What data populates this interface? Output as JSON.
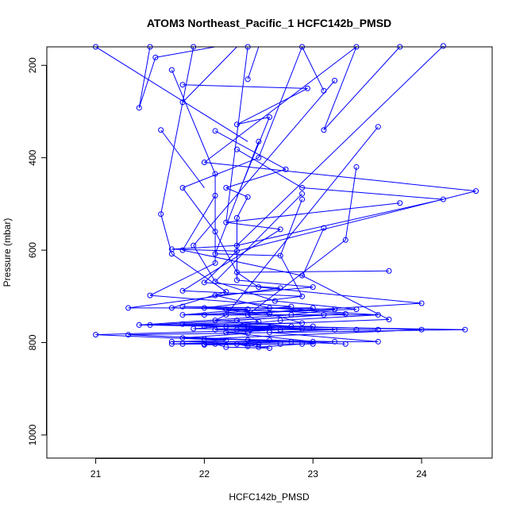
{
  "chart_data": {
    "type": "line",
    "title": "ATOM3 Northeast_Pacific_1 HCFC142b_PMSD",
    "xlabel": "HCFC142b_PMSD",
    "ylabel": "Pressure (mbar)",
    "xlim": [
      20.55,
      24.65
    ],
    "ylim": [
      1050,
      160
    ],
    "y_inverted": true,
    "x_ticks": [
      21,
      22,
      23,
      24
    ],
    "y_ticks": [
      200,
      400,
      600,
      800,
      1000
    ],
    "grid": false,
    "legend": "none",
    "marker": "open-circle",
    "color": "#0000ff",
    "points": [
      {
        "x": 21.0,
        "y": 160
      },
      {
        "x": 21.5,
        "y": 160
      },
      {
        "x": 21.9,
        "y": 160
      },
      {
        "x": 22.4,
        "y": 160
      },
      {
        "x": 22.9,
        "y": 160
      },
      {
        "x": 23.4,
        "y": 160
      },
      {
        "x": 23.8,
        "y": 160
      },
      {
        "x": 24.2,
        "y": 158
      },
      {
        "x": 21.55,
        "y": 183
      },
      {
        "x": 21.7,
        "y": 210
      },
      {
        "x": 22.4,
        "y": 230
      },
      {
        "x": 23.2,
        "y": 233
      },
      {
        "x": 21.8,
        "y": 242
      },
      {
        "x": 22.95,
        "y": 250
      },
      {
        "x": 23.1,
        "y": 255
      },
      {
        "x": 21.8,
        "y": 280
      },
      {
        "x": 21.4,
        "y": 292
      },
      {
        "x": 22.6,
        "y": 312
      },
      {
        "x": 22.3,
        "y": 328
      },
      {
        "x": 23.6,
        "y": 333
      },
      {
        "x": 21.6,
        "y": 340
      },
      {
        "x": 22.1,
        "y": 342
      },
      {
        "x": 23.1,
        "y": 340
      },
      {
        "x": 22.5,
        "y": 365
      },
      {
        "x": 22.3,
        "y": 382
      },
      {
        "x": 22.5,
        "y": 400
      },
      {
        "x": 22.0,
        "y": 410
      },
      {
        "x": 23.4,
        "y": 420
      },
      {
        "x": 22.75,
        "y": 425
      },
      {
        "x": 22.1,
        "y": 435
      },
      {
        "x": 22.2,
        "y": 465
      },
      {
        "x": 21.8,
        "y": 465
      },
      {
        "x": 22.9,
        "y": 465
      },
      {
        "x": 24.5,
        "y": 472
      },
      {
        "x": 22.9,
        "y": 478
      },
      {
        "x": 22.4,
        "y": 485
      },
      {
        "x": 22.1,
        "y": 482
      },
      {
        "x": 22.9,
        "y": 490
      },
      {
        "x": 24.2,
        "y": 490
      },
      {
        "x": 23.8,
        "y": 498
      },
      {
        "x": 21.6,
        "y": 522
      },
      {
        "x": 22.3,
        "y": 530
      },
      {
        "x": 22.2,
        "y": 540
      },
      {
        "x": 22.7,
        "y": 555
      },
      {
        "x": 23.1,
        "y": 552
      },
      {
        "x": 22.1,
        "y": 560
      },
      {
        "x": 23.3,
        "y": 578
      },
      {
        "x": 21.9,
        "y": 590
      },
      {
        "x": 22.3,
        "y": 590
      },
      {
        "x": 21.7,
        "y": 598
      },
      {
        "x": 21.8,
        "y": 600
      },
      {
        "x": 22.3,
        "y": 602
      },
      {
        "x": 21.7,
        "y": 608
      },
      {
        "x": 22.1,
        "y": 608
      },
      {
        "x": 22.7,
        "y": 612
      },
      {
        "x": 22.1,
        "y": 628
      },
      {
        "x": 23.7,
        "y": 645
      },
      {
        "x": 22.3,
        "y": 648
      },
      {
        "x": 22.9,
        "y": 655
      },
      {
        "x": 22.0,
        "y": 670
      },
      {
        "x": 22.3,
        "y": 665
      },
      {
        "x": 22.1,
        "y": 668
      },
      {
        "x": 22.5,
        "y": 680
      },
      {
        "x": 22.7,
        "y": 682
      },
      {
        "x": 23.0,
        "y": 680
      },
      {
        "x": 21.8,
        "y": 688
      },
      {
        "x": 22.2,
        "y": 690
      },
      {
        "x": 22.1,
        "y": 698
      },
      {
        "x": 21.5,
        "y": 698
      },
      {
        "x": 22.9,
        "y": 700
      },
      {
        "x": 22.65,
        "y": 710
      },
      {
        "x": 24.0,
        "y": 715
      },
      {
        "x": 21.3,
        "y": 725
      },
      {
        "x": 21.7,
        "y": 725
      },
      {
        "x": 21.8,
        "y": 722
      },
      {
        "x": 22.0,
        "y": 725
      },
      {
        "x": 22.2,
        "y": 728
      },
      {
        "x": 22.4,
        "y": 728
      },
      {
        "x": 22.6,
        "y": 725
      },
      {
        "x": 22.8,
        "y": 722
      },
      {
        "x": 23.0,
        "y": 725
      },
      {
        "x": 23.2,
        "y": 728
      },
      {
        "x": 23.4,
        "y": 728
      },
      {
        "x": 21.8,
        "y": 740
      },
      {
        "x": 22.0,
        "y": 740
      },
      {
        "x": 22.2,
        "y": 740
      },
      {
        "x": 22.4,
        "y": 740
      },
      {
        "x": 22.6,
        "y": 738
      },
      {
        "x": 22.8,
        "y": 740
      },
      {
        "x": 23.1,
        "y": 740
      },
      {
        "x": 23.3,
        "y": 738
      },
      {
        "x": 23.6,
        "y": 740
      },
      {
        "x": 23.7,
        "y": 750
      },
      {
        "x": 22.1,
        "y": 752
      },
      {
        "x": 22.3,
        "y": 752
      },
      {
        "x": 22.5,
        "y": 755
      },
      {
        "x": 22.7,
        "y": 752
      },
      {
        "x": 22.9,
        "y": 758
      },
      {
        "x": 21.4,
        "y": 762
      },
      {
        "x": 21.5,
        "y": 762
      },
      {
        "x": 21.8,
        "y": 760
      },
      {
        "x": 22.0,
        "y": 765
      },
      {
        "x": 22.2,
        "y": 765
      },
      {
        "x": 22.4,
        "y": 765
      },
      {
        "x": 22.6,
        "y": 768
      },
      {
        "x": 22.8,
        "y": 765
      },
      {
        "x": 23.0,
        "y": 765
      },
      {
        "x": 21.9,
        "y": 770
      },
      {
        "x": 22.1,
        "y": 772
      },
      {
        "x": 22.3,
        "y": 772
      },
      {
        "x": 22.5,
        "y": 770
      },
      {
        "x": 22.7,
        "y": 772
      },
      {
        "x": 22.9,
        "y": 770
      },
      {
        "x": 23.2,
        "y": 772
      },
      {
        "x": 23.4,
        "y": 772
      },
      {
        "x": 23.6,
        "y": 772
      },
      {
        "x": 24.0,
        "y": 772
      },
      {
        "x": 24.4,
        "y": 772
      },
      {
        "x": 22.2,
        "y": 778
      },
      {
        "x": 22.4,
        "y": 780
      },
      {
        "x": 22.6,
        "y": 778
      },
      {
        "x": 21.0,
        "y": 783
      },
      {
        "x": 21.3,
        "y": 783
      },
      {
        "x": 21.8,
        "y": 790
      },
      {
        "x": 22.0,
        "y": 792
      },
      {
        "x": 22.2,
        "y": 795
      },
      {
        "x": 22.4,
        "y": 795
      },
      {
        "x": 22.6,
        "y": 795
      },
      {
        "x": 22.8,
        "y": 798
      },
      {
        "x": 23.0,
        "y": 798
      },
      {
        "x": 23.2,
        "y": 798
      },
      {
        "x": 23.6,
        "y": 798
      },
      {
        "x": 21.7,
        "y": 798
      },
      {
        "x": 21.7,
        "y": 803
      },
      {
        "x": 21.8,
        "y": 803
      },
      {
        "x": 22.0,
        "y": 803
      },
      {
        "x": 22.1,
        "y": 803
      },
      {
        "x": 22.3,
        "y": 803
      },
      {
        "x": 22.5,
        "y": 803
      },
      {
        "x": 22.7,
        "y": 803
      },
      {
        "x": 22.9,
        "y": 803
      },
      {
        "x": 23.0,
        "y": 803
      },
      {
        "x": 23.3,
        "y": 803
      },
      {
        "x": 22.2,
        "y": 810
      },
      {
        "x": 22.4,
        "y": 808
      },
      {
        "x": 22.5,
        "y": 810
      },
      {
        "x": 22.6,
        "y": 812
      },
      {
        "x": 22.0,
        "y": 805
      }
    ],
    "segments": [
      [
        21.0,
        160,
        22.4,
        365
      ],
      [
        21.5,
        160,
        21.4,
        292
      ],
      [
        21.9,
        160,
        21.6,
        522
      ],
      [
        22.4,
        160,
        22.2,
        540
      ],
      [
        22.9,
        160,
        22.5,
        400
      ],
      [
        23.4,
        160,
        22.0,
        410
      ],
      [
        23.8,
        160,
        23.1,
        340
      ],
      [
        24.2,
        158,
        22.3,
        590
      ],
      [
        21.55,
        183,
        22.1,
        160
      ],
      [
        21.7,
        210,
        22.1,
        435
      ],
      [
        22.4,
        230,
        22.5,
        160
      ],
      [
        23.2,
        233,
        21.9,
        590
      ],
      [
        21.8,
        242,
        22.95,
        250
      ],
      [
        22.95,
        250,
        22.3,
        328
      ],
      [
        23.1,
        255,
        22.9,
        160
      ],
      [
        21.8,
        280,
        22.3,
        160
      ],
      [
        21.4,
        292,
        21.55,
        183
      ],
      [
        22.6,
        312,
        22.3,
        485
      ],
      [
        22.3,
        328,
        22.6,
        312
      ],
      [
        23.6,
        333,
        22.2,
        740
      ],
      [
        21.6,
        340,
        22.0,
        465
      ],
      [
        22.1,
        342,
        22.75,
        425
      ],
      [
        23.1,
        340,
        23.4,
        160
      ],
      [
        22.5,
        365,
        22.1,
        608
      ],
      [
        22.3,
        382,
        22.9,
        465
      ],
      [
        22.5,
        400,
        21.8,
        465
      ],
      [
        22.0,
        410,
        24.5,
        472
      ],
      [
        23.4,
        420,
        23.3,
        578
      ],
      [
        22.75,
        425,
        22.2,
        465
      ],
      [
        22.1,
        435,
        22.1,
        628
      ],
      [
        22.2,
        465,
        22.4,
        485
      ],
      [
        21.8,
        465,
        22.1,
        560
      ],
      [
        22.9,
        465,
        24.2,
        490
      ],
      [
        24.5,
        472,
        22.3,
        602
      ],
      [
        22.9,
        478,
        22.1,
        668
      ],
      [
        22.4,
        485,
        22.3,
        530
      ],
      [
        22.1,
        482,
        21.8,
        600
      ],
      [
        22.9,
        490,
        22.7,
        612
      ],
      [
        24.2,
        490,
        22.3,
        590
      ],
      [
        23.8,
        498,
        22.2,
        540
      ],
      [
        21.6,
        522,
        21.7,
        608
      ],
      [
        22.3,
        530,
        22.3,
        665
      ],
      [
        22.2,
        540,
        22.7,
        555
      ],
      [
        22.7,
        555,
        21.8,
        688
      ],
      [
        23.1,
        552,
        22.9,
        658
      ],
      [
        22.1,
        560,
        22.3,
        648
      ],
      [
        23.3,
        578,
        22.4,
        740
      ],
      [
        21.9,
        590,
        22.1,
        668
      ],
      [
        22.3,
        590,
        21.7,
        598
      ],
      [
        21.7,
        598,
        22.3,
        602
      ],
      [
        21.8,
        600,
        22.9,
        655
      ],
      [
        22.3,
        602,
        22.0,
        670
      ],
      [
        21.7,
        608,
        22.2,
        690
      ],
      [
        22.1,
        608,
        22.7,
        612
      ],
      [
        22.7,
        612,
        22.9,
        700
      ],
      [
        22.1,
        628,
        21.5,
        698
      ],
      [
        23.7,
        645,
        22.3,
        648
      ],
      [
        22.3,
        648,
        22.5,
        680
      ],
      [
        22.9,
        655,
        23.7,
        750
      ],
      [
        22.0,
        670,
        22.7,
        682
      ],
      [
        22.3,
        665,
        23.0,
        680
      ],
      [
        22.1,
        668,
        22.65,
        710
      ],
      [
        22.5,
        680,
        24.0,
        715
      ],
      [
        22.7,
        682,
        21.3,
        725
      ],
      [
        23.0,
        680,
        22.1,
        698
      ],
      [
        21.8,
        688,
        22.9,
        700
      ],
      [
        22.2,
        690,
        21.7,
        725
      ],
      [
        22.1,
        698,
        22.6,
        725
      ],
      [
        21.5,
        698,
        22.8,
        722
      ],
      [
        22.9,
        700,
        22.0,
        725
      ],
      [
        22.65,
        710,
        23.4,
        728
      ],
      [
        24.0,
        715,
        22.2,
        740
      ],
      [
        21.3,
        725,
        23.0,
        725
      ],
      [
        21.7,
        725,
        22.4,
        728
      ],
      [
        21.8,
        722,
        23.2,
        728
      ],
      [
        22.0,
        725,
        22.6,
        738
      ],
      [
        22.2,
        728,
        23.3,
        738
      ],
      [
        22.4,
        728,
        21.8,
        740
      ],
      [
        22.6,
        725,
        23.6,
        740
      ],
      [
        22.8,
        722,
        22.0,
        740
      ],
      [
        23.0,
        725,
        22.4,
        740
      ],
      [
        23.2,
        728,
        22.8,
        740
      ],
      [
        23.4,
        728,
        21.8,
        740
      ],
      [
        21.8,
        740,
        23.1,
        740
      ],
      [
        22.0,
        740,
        23.6,
        740
      ],
      [
        22.2,
        740,
        22.1,
        752
      ],
      [
        22.4,
        740,
        22.5,
        755
      ],
      [
        22.6,
        738,
        22.9,
        758
      ],
      [
        22.8,
        740,
        21.4,
        762
      ],
      [
        23.1,
        740,
        22.3,
        752
      ],
      [
        23.3,
        738,
        21.5,
        762
      ],
      [
        23.6,
        740,
        22.7,
        752
      ],
      [
        23.7,
        750,
        22.0,
        765
      ],
      [
        22.1,
        752,
        22.8,
        765
      ],
      [
        22.3,
        752,
        22.4,
        765
      ],
      [
        22.5,
        755,
        21.8,
        760
      ],
      [
        22.7,
        752,
        22.2,
        765
      ],
      [
        22.9,
        758,
        21.5,
        762
      ],
      [
        21.4,
        762,
        23.0,
        765
      ],
      [
        21.5,
        762,
        22.6,
        768
      ],
      [
        21.8,
        760,
        22.9,
        770
      ],
      [
        22.0,
        765,
        23.4,
        772
      ],
      [
        22.2,
        765,
        21.9,
        770
      ],
      [
        22.4,
        765,
        24.4,
        772
      ],
      [
        22.6,
        768,
        22.1,
        772
      ],
      [
        22.8,
        765,
        24.0,
        772
      ],
      [
        23.0,
        765,
        22.3,
        772
      ],
      [
        21.9,
        770,
        23.6,
        772
      ],
      [
        22.1,
        772,
        23.2,
        772
      ],
      [
        22.3,
        772,
        22.7,
        772
      ],
      [
        22.5,
        770,
        22.4,
        780
      ],
      [
        22.7,
        772,
        21.0,
        783
      ],
      [
        22.9,
        770,
        22.2,
        778
      ],
      [
        23.2,
        772,
        22.6,
        778
      ],
      [
        24.4,
        772,
        21.3,
        783
      ],
      [
        24.0,
        772,
        22.0,
        792
      ],
      [
        22.2,
        778,
        23.0,
        798
      ],
      [
        22.4,
        780,
        21.8,
        790
      ],
      [
        22.6,
        778,
        23.6,
        798
      ],
      [
        21.0,
        783,
        22.2,
        795
      ],
      [
        21.3,
        783,
        22.8,
        798
      ],
      [
        21.8,
        790,
        23.2,
        798
      ],
      [
        22.0,
        792,
        22.6,
        795
      ],
      [
        22.2,
        795,
        21.7,
        798
      ],
      [
        22.4,
        795,
        23.3,
        803
      ],
      [
        22.6,
        795,
        21.7,
        803
      ],
      [
        22.8,
        798,
        22.1,
        803
      ],
      [
        23.0,
        798,
        21.8,
        803
      ],
      [
        23.2,
        798,
        22.9,
        803
      ],
      [
        23.6,
        798,
        21.7,
        798
      ],
      [
        21.7,
        803,
        23.0,
        803
      ],
      [
        21.8,
        803,
        22.5,
        803
      ],
      [
        22.0,
        803,
        22.7,
        803
      ],
      [
        22.1,
        803,
        22.2,
        810
      ],
      [
        22.3,
        803,
        22.6,
        812
      ],
      [
        22.5,
        803,
        22.4,
        808
      ],
      [
        22.7,
        803,
        22.0,
        805
      ],
      [
        22.9,
        803,
        22.5,
        810
      ],
      [
        22.2,
        810,
        22.6,
        812
      ],
      [
        22.4,
        808,
        22.3,
        803
      ]
    ]
  }
}
